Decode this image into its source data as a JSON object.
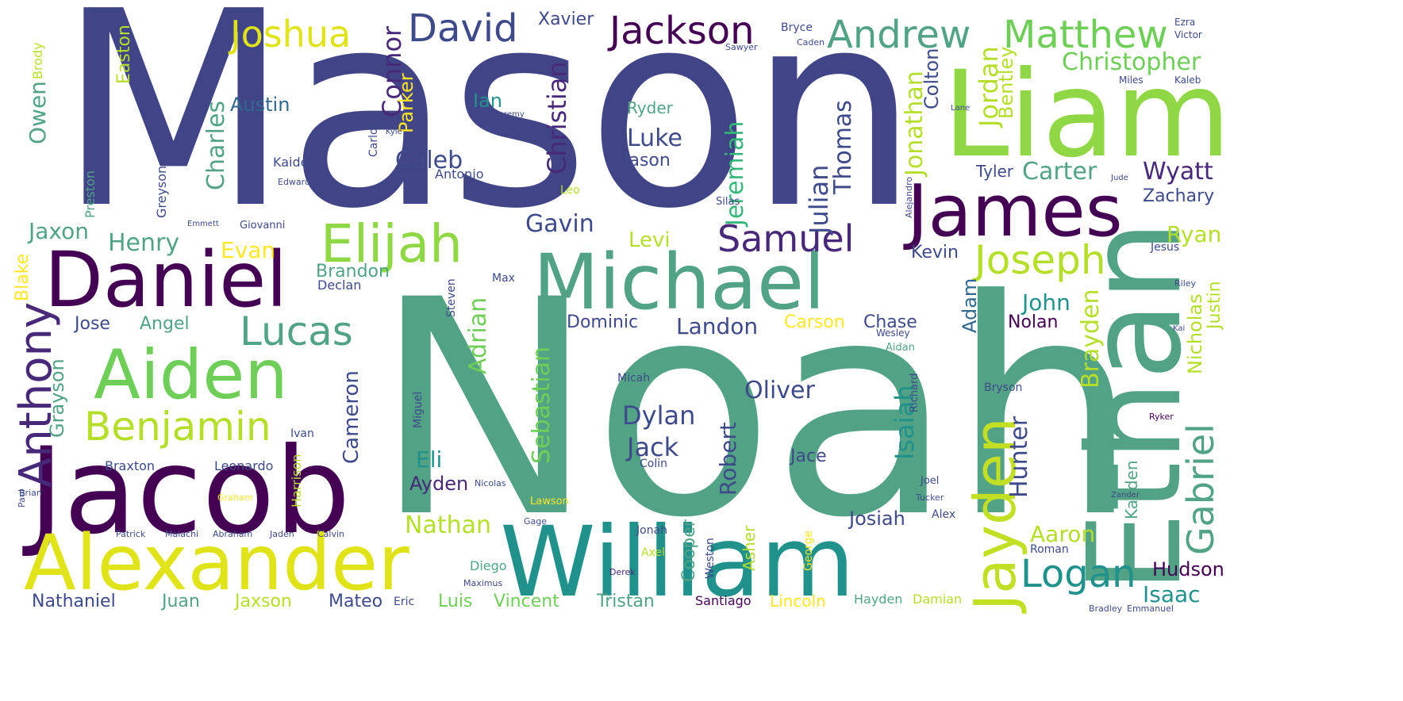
{
  "palette": {
    "indigo": "#414487",
    "dark_purple": "#440154",
    "purple": "#482878",
    "slate": "#3e4a89",
    "blue": "#31688e",
    "teal_blue": "#26828e",
    "teal": "#21918c",
    "green_teal": "#35b779",
    "sea_green": "#52a386",
    "mid_green": "#6ece58",
    "light_green": "#8fd744",
    "yellow_green": "#b5de2b",
    "lime": "#c2df23",
    "yellow": "#dfe318",
    "bright_yellow": "#fde725"
  },
  "words": [
    {
      "text": "Mason",
      "color": "indigo"
    },
    {
      "text": "Noah",
      "color": "sea_green"
    },
    {
      "text": "Liam",
      "color": "light_green"
    },
    {
      "text": "Ethan",
      "color": "sea_green"
    },
    {
      "text": "Jacob",
      "color": "dark_purple"
    },
    {
      "text": "William",
      "color": "teal"
    },
    {
      "text": "Alexander",
      "color": "yellow"
    },
    {
      "text": "Michael",
      "color": "sea_green"
    },
    {
      "text": "Daniel",
      "color": "dark_purple"
    },
    {
      "text": "James",
      "color": "dark_purple"
    },
    {
      "text": "Aiden",
      "color": "mid_green"
    },
    {
      "text": "Jayden",
      "color": "lime"
    },
    {
      "text": "Elijah",
      "color": "light_green"
    },
    {
      "text": "Anthony",
      "color": "purple"
    },
    {
      "text": "Benjamin",
      "color": "yellow_green"
    },
    {
      "text": "Lucas",
      "color": "sea_green"
    },
    {
      "text": "Joseph",
      "color": "yellow_green"
    },
    {
      "text": "Logan",
      "color": "teal"
    },
    {
      "text": "Gabriel",
      "color": "sea_green"
    },
    {
      "text": "Samuel",
      "color": "purple"
    },
    {
      "text": "Joshua",
      "color": "yellow"
    },
    {
      "text": "David",
      "color": "slate"
    },
    {
      "text": "Jackson",
      "color": "dark_purple"
    },
    {
      "text": "Andrew",
      "color": "sea_green"
    },
    {
      "text": "Matthew",
      "color": "mid_green"
    },
    {
      "text": "Christopher",
      "color": "mid_green"
    },
    {
      "text": "Connor",
      "color": "purple"
    },
    {
      "text": "Christian",
      "color": "purple"
    },
    {
      "text": "Jeremiah",
      "color": "green_teal"
    },
    {
      "text": "Julian",
      "color": "slate"
    },
    {
      "text": "Thomas",
      "color": "slate"
    },
    {
      "text": "Jonathan",
      "color": "yellow_green"
    },
    {
      "text": "Colton",
      "color": "slate"
    },
    {
      "text": "Jordan",
      "color": "yellow_green"
    },
    {
      "text": "Bentley",
      "color": "yellow_green"
    },
    {
      "text": "Charles",
      "color": "sea_green"
    },
    {
      "text": "Austin",
      "color": "blue"
    },
    {
      "text": "Owen",
      "color": "sea_green"
    },
    {
      "text": "Parker",
      "color": "bright_yellow"
    },
    {
      "text": "Caleb",
      "color": "slate"
    },
    {
      "text": "Luke",
      "color": "slate"
    },
    {
      "text": "Jason",
      "color": "slate"
    },
    {
      "text": "Ryder",
      "color": "sea_green"
    },
    {
      "text": "Ian",
      "color": "teal"
    },
    {
      "text": "Carter",
      "color": "sea_green"
    },
    {
      "text": "Tyler",
      "color": "slate"
    },
    {
      "text": "Wyatt",
      "color": "purple"
    },
    {
      "text": "Zachary",
      "color": "slate"
    },
    {
      "text": "Ryan",
      "color": "yellow_green"
    },
    {
      "text": "Henry",
      "color": "sea_green"
    },
    {
      "text": "Jaxon",
      "color": "sea_green"
    },
    {
      "text": "Evan",
      "color": "bright_yellow"
    },
    {
      "text": "Gavin",
      "color": "slate"
    },
    {
      "text": "Levi",
      "color": "yellow_green"
    },
    {
      "text": "Brandon",
      "color": "sea_green"
    },
    {
      "text": "Adrian",
      "color": "mid_green"
    },
    {
      "text": "Sebastian",
      "color": "mid_green"
    },
    {
      "text": "Kevin",
      "color": "slate"
    },
    {
      "text": "Landon",
      "color": "slate"
    },
    {
      "text": "Dominic",
      "color": "slate"
    },
    {
      "text": "Carson",
      "color": "bright_yellow"
    },
    {
      "text": "Chase",
      "color": "slate"
    },
    {
      "text": "Adam",
      "color": "blue"
    },
    {
      "text": "John",
      "color": "teal"
    },
    {
      "text": "Nolan",
      "color": "dark_purple"
    },
    {
      "text": "Nicholas",
      "color": "yellow_green"
    },
    {
      "text": "Justin",
      "color": "yellow_green"
    },
    {
      "text": "Brayden",
      "color": "yellow_green"
    },
    {
      "text": "Hunter",
      "color": "slate"
    },
    {
      "text": "Isaiah",
      "color": "teal"
    },
    {
      "text": "Oliver",
      "color": "slate"
    },
    {
      "text": "Dylan",
      "color": "slate"
    },
    {
      "text": "Jack",
      "color": "slate"
    },
    {
      "text": "Robert",
      "color": "slate"
    },
    {
      "text": "Jace",
      "color": "slate"
    },
    {
      "text": "Cameron",
      "color": "slate"
    },
    {
      "text": "Grayson",
      "color": "sea_green"
    },
    {
      "text": "Blake",
      "color": "bright_yellow"
    },
    {
      "text": "Jose",
      "color": "slate"
    },
    {
      "text": "Angel",
      "color": "sea_green"
    },
    {
      "text": "Eli",
      "color": "teal"
    },
    {
      "text": "Ayden",
      "color": "purple"
    },
    {
      "text": "Nathan",
      "color": "yellow_green"
    },
    {
      "text": "Josiah",
      "color": "slate"
    },
    {
      "text": "Cooper",
      "color": "sea_green"
    },
    {
      "text": "Asher",
      "color": "yellow_green"
    },
    {
      "text": "Aaron",
      "color": "yellow_green"
    },
    {
      "text": "Hudson",
      "color": "dark_purple"
    },
    {
      "text": "Isaac",
      "color": "teal"
    },
    {
      "text": "Kayden",
      "color": "sea_green"
    },
    {
      "text": "Nathaniel",
      "color": "slate"
    },
    {
      "text": "Juan",
      "color": "sea_green"
    },
    {
      "text": "Jaxson",
      "color": "yellow_green"
    },
    {
      "text": "Mateo",
      "color": "slate"
    },
    {
      "text": "Eric",
      "color": "slate"
    },
    {
      "text": "Luis",
      "color": "mid_green"
    },
    {
      "text": "Vincent",
      "color": "mid_green"
    },
    {
      "text": "Tristan",
      "color": "sea_green"
    },
    {
      "text": "Santiago",
      "color": "dark_purple"
    },
    {
      "text": "Lincoln",
      "color": "bright_yellow"
    },
    {
      "text": "Hayden",
      "color": "sea_green"
    },
    {
      "text": "Damian",
      "color": "yellow_green"
    },
    {
      "text": "Xavier",
      "color": "slate"
    },
    {
      "text": "Bryce",
      "color": "slate"
    },
    {
      "text": "Sawyer",
      "color": "slate"
    },
    {
      "text": "Caden",
      "color": "slate"
    },
    {
      "text": "Ezra",
      "color": "slate"
    },
    {
      "text": "Victor",
      "color": "slate"
    },
    {
      "text": "Miles",
      "color": "slate"
    },
    {
      "text": "Kaleb",
      "color": "slate"
    },
    {
      "text": "Easton",
      "color": "yellow_green"
    },
    {
      "text": "Brody",
      "color": "yellow_green"
    },
    {
      "text": "Preston",
      "color": "sea_green"
    },
    {
      "text": "Greyson",
      "color": "slate"
    },
    {
      "text": "Kaiden",
      "color": "slate"
    },
    {
      "text": "Carlos",
      "color": "slate"
    },
    {
      "text": "Antonio",
      "color": "slate"
    },
    {
      "text": "Giovanni",
      "color": "slate"
    },
    {
      "text": "Leo",
      "color": "yellow_green"
    },
    {
      "text": "Silas",
      "color": "slate"
    },
    {
      "text": "Max",
      "color": "slate"
    },
    {
      "text": "Declan",
      "color": "slate"
    },
    {
      "text": "Steven",
      "color": "slate"
    },
    {
      "text": "Ivan",
      "color": "slate"
    },
    {
      "text": "Harrison",
      "color": "yellow_green"
    },
    {
      "text": "Braxton",
      "color": "slate"
    },
    {
      "text": "Leonardo",
      "color": "slate"
    },
    {
      "text": "Micah",
      "color": "slate"
    },
    {
      "text": "Miguel",
      "color": "slate"
    },
    {
      "text": "Colin",
      "color": "slate"
    },
    {
      "text": "Bryson",
      "color": "slate"
    },
    {
      "text": "Richard",
      "color": "slate"
    },
    {
      "text": "Jonah",
      "color": "slate"
    },
    {
      "text": "Axel",
      "color": "yellow_green"
    },
    {
      "text": "Diego",
      "color": "sea_green"
    },
    {
      "text": "Weston",
      "color": "slate"
    },
    {
      "text": "George",
      "color": "bright_yellow"
    },
    {
      "text": "Roman",
      "color": "slate"
    },
    {
      "text": "Jesus",
      "color": "slate"
    },
    {
      "text": "Riley",
      "color": "slate"
    },
    {
      "text": "Aidan",
      "color": "sea_green"
    },
    {
      "text": "Wesley",
      "color": "slate"
    },
    {
      "text": "Alex",
      "color": "slate"
    },
    {
      "text": "Joel",
      "color": "slate"
    },
    {
      "text": "Tucker",
      "color": "slate"
    },
    {
      "text": "Bradley",
      "color": "slate"
    },
    {
      "text": "Emmanuel",
      "color": "slate"
    },
    {
      "text": "Maximus",
      "color": "slate"
    },
    {
      "text": "Derek",
      "color": "purple"
    },
    {
      "text": "Gage",
      "color": "slate"
    },
    {
      "text": "Nicolas",
      "color": "slate"
    },
    {
      "text": "Lawson",
      "color": "bright_yellow"
    },
    {
      "text": "Patrick",
      "color": "slate"
    },
    {
      "text": "Malachi",
      "color": "slate"
    },
    {
      "text": "Abraham",
      "color": "slate"
    },
    {
      "text": "Jaden",
      "color": "slate"
    },
    {
      "text": "Calvin",
      "color": "slate"
    },
    {
      "text": "Graham",
      "color": "bright_yellow"
    },
    {
      "text": "Paul",
      "color": "slate"
    },
    {
      "text": "Brian",
      "color": "slate"
    },
    {
      "text": "Lane",
      "color": "slate"
    },
    {
      "text": "Jude",
      "color": "slate"
    },
    {
      "text": "Kyle",
      "color": "slate"
    },
    {
      "text": "Jeremy",
      "color": "slate"
    },
    {
      "text": "Edward",
      "color": "slate"
    },
    {
      "text": "Kai",
      "color": "slate"
    },
    {
      "text": "Ryker",
      "color": "dark_purple"
    },
    {
      "text": "Emmett",
      "color": "slate"
    },
    {
      "text": "Alejandro",
      "color": "slate"
    },
    {
      "text": "Zander",
      "color": "slate"
    }
  ]
}
